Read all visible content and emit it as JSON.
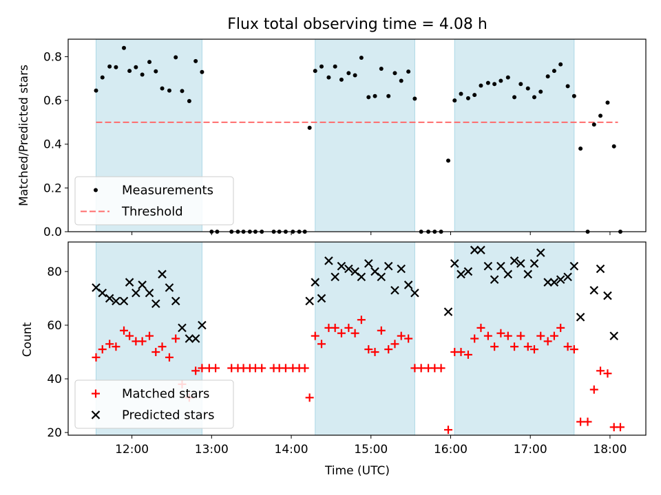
{
  "chart_data": {
    "type": "scatter",
    "title": "Flux total observing time = 4.08 h",
    "xlabel": "Time (UTC)",
    "x_unit": "hours UTC",
    "xlim": [
      11.2,
      18.45
    ],
    "x_ticks": [
      12,
      13,
      14,
      15,
      16,
      17,
      18
    ],
    "x_tick_labels": [
      "12:00",
      "13:00",
      "14:00",
      "15:00",
      "16:00",
      "17:00",
      "18:00"
    ],
    "shaded_intervals": [
      [
        11.55,
        12.88
      ],
      [
        14.3,
        15.55
      ],
      [
        16.05,
        17.55
      ]
    ],
    "shade_color": "#add8e6",
    "panels": [
      {
        "id": "top",
        "ylabel": "Matched/Predicted stars",
        "ylim": [
          0.0,
          0.88
        ],
        "y_ticks": [
          0.0,
          0.2,
          0.4,
          0.6,
          0.8
        ],
        "y_tick_labels": [
          "0.0",
          "0.2",
          "0.4",
          "0.6",
          "0.8"
        ],
        "legend_position": "lower-left",
        "threshold": {
          "name": "Threshold",
          "y": 0.5,
          "x_range": [
            11.55,
            18.1
          ],
          "color": "#ff6b6b"
        },
        "series": [
          {
            "name": "Measurements",
            "marker": "dot",
            "color": "#000000",
            "points": [
              [
                11.55,
                0.645
              ],
              [
                11.63,
                0.705
              ],
              [
                11.72,
                0.755
              ],
              [
                11.8,
                0.752
              ],
              [
                11.9,
                0.84
              ],
              [
                11.97,
                0.735
              ],
              [
                12.05,
                0.752
              ],
              [
                12.13,
                0.718
              ],
              [
                12.22,
                0.776
              ],
              [
                12.3,
                0.733
              ],
              [
                12.38,
                0.655
              ],
              [
                12.47,
                0.645
              ],
              [
                12.55,
                0.797
              ],
              [
                12.63,
                0.643
              ],
              [
                12.72,
                0.597
              ],
              [
                12.8,
                0.78
              ],
              [
                12.88,
                0.73
              ],
              [
                13.0,
                0.0
              ],
              [
                13.07,
                0.0
              ],
              [
                13.25,
                0.0
              ],
              [
                13.33,
                0.0
              ],
              [
                13.4,
                0.0
              ],
              [
                13.48,
                0.0
              ],
              [
                13.55,
                0.0
              ],
              [
                13.63,
                0.0
              ],
              [
                13.78,
                0.0
              ],
              [
                13.85,
                0.0
              ],
              [
                13.93,
                0.0
              ],
              [
                14.02,
                0.0
              ],
              [
                14.1,
                0.0
              ],
              [
                14.17,
                0.0
              ],
              [
                14.23,
                0.475
              ],
              [
                14.3,
                0.735
              ],
              [
                14.38,
                0.755
              ],
              [
                14.47,
                0.705
              ],
              [
                14.55,
                0.755
              ],
              [
                14.63,
                0.695
              ],
              [
                14.72,
                0.725
              ],
              [
                14.8,
                0.715
              ],
              [
                14.88,
                0.795
              ],
              [
                14.97,
                0.615
              ],
              [
                15.05,
                0.62
              ],
              [
                15.13,
                0.745
              ],
              [
                15.22,
                0.62
              ],
              [
                15.3,
                0.725
              ],
              [
                15.38,
                0.69
              ],
              [
                15.47,
                0.732
              ],
              [
                15.55,
                0.608
              ],
              [
                15.63,
                0.0
              ],
              [
                15.72,
                0.0
              ],
              [
                15.8,
                0.0
              ],
              [
                15.88,
                0.0
              ],
              [
                15.97,
                0.325
              ],
              [
                16.05,
                0.6
              ],
              [
                16.13,
                0.63
              ],
              [
                16.22,
                0.61
              ],
              [
                16.3,
                0.625
              ],
              [
                16.38,
                0.668
              ],
              [
                16.47,
                0.68
              ],
              [
                16.55,
                0.675
              ],
              [
                16.63,
                0.69
              ],
              [
                16.72,
                0.705
              ],
              [
                16.8,
                0.615
              ],
              [
                16.88,
                0.675
              ],
              [
                16.97,
                0.655
              ],
              [
                17.05,
                0.615
              ],
              [
                17.13,
                0.64
              ],
              [
                17.22,
                0.71
              ],
              [
                17.3,
                0.735
              ],
              [
                17.38,
                0.765
              ],
              [
                17.47,
                0.665
              ],
              [
                17.55,
                0.62
              ],
              [
                17.63,
                0.38
              ],
              [
                17.72,
                0.0
              ],
              [
                17.8,
                0.49
              ],
              [
                17.88,
                0.53
              ],
              [
                17.97,
                0.59
              ],
              [
                18.05,
                0.39
              ],
              [
                18.13,
                0.0
              ]
            ]
          }
        ]
      },
      {
        "id": "bottom",
        "ylabel": "Count",
        "ylim": [
          19,
          91
        ],
        "y_ticks": [
          20,
          40,
          60,
          80
        ],
        "y_tick_labels": [
          "20",
          "40",
          "60",
          "80"
        ],
        "legend_position": "lower-left",
        "series": [
          {
            "name": "Matched stars",
            "marker": "plus",
            "color": "#ff0000",
            "points": [
              [
                11.55,
                48
              ],
              [
                11.63,
                51
              ],
              [
                11.72,
                53
              ],
              [
                11.8,
                52
              ],
              [
                11.9,
                58
              ],
              [
                11.97,
                56
              ],
              [
                12.05,
                54
              ],
              [
                12.13,
                54
              ],
              [
                12.22,
                56
              ],
              [
                12.3,
                50
              ],
              [
                12.38,
                52
              ],
              [
                12.47,
                48
              ],
              [
                12.55,
                55
              ],
              [
                12.63,
                38
              ],
              [
                12.72,
                33
              ],
              [
                12.8,
                43
              ],
              [
                12.88,
                44
              ],
              [
                12.97,
                44
              ],
              [
                13.05,
                44
              ],
              [
                13.25,
                44
              ],
              [
                13.33,
                44
              ],
              [
                13.4,
                44
              ],
              [
                13.48,
                44
              ],
              [
                13.55,
                44
              ],
              [
                13.63,
                44
              ],
              [
                13.78,
                44
              ],
              [
                13.85,
                44
              ],
              [
                13.93,
                44
              ],
              [
                14.02,
                44
              ],
              [
                14.1,
                44
              ],
              [
                14.17,
                44
              ],
              [
                14.23,
                33
              ],
              [
                14.3,
                56
              ],
              [
                14.38,
                53
              ],
              [
                14.47,
                59
              ],
              [
                14.55,
                59
              ],
              [
                14.63,
                57
              ],
              [
                14.72,
                59
              ],
              [
                14.8,
                57
              ],
              [
                14.88,
                62
              ],
              [
                14.97,
                51
              ],
              [
                15.05,
                50
              ],
              [
                15.13,
                58
              ],
              [
                15.22,
                51
              ],
              [
                15.3,
                53
              ],
              [
                15.38,
                56
              ],
              [
                15.47,
                55
              ],
              [
                15.55,
                44
              ],
              [
                15.63,
                44
              ],
              [
                15.72,
                44
              ],
              [
                15.8,
                44
              ],
              [
                15.88,
                44
              ],
              [
                15.97,
                21
              ],
              [
                16.05,
                50
              ],
              [
                16.13,
                50
              ],
              [
                16.22,
                49
              ],
              [
                16.3,
                55
              ],
              [
                16.38,
                59
              ],
              [
                16.47,
                56
              ],
              [
                16.55,
                52
              ],
              [
                16.63,
                57
              ],
              [
                16.72,
                56
              ],
              [
                16.8,
                52
              ],
              [
                16.88,
                56
              ],
              [
                16.97,
                52
              ],
              [
                17.05,
                51
              ],
              [
                17.13,
                56
              ],
              [
                17.22,
                54
              ],
              [
                17.3,
                56
              ],
              [
                17.38,
                59
              ],
              [
                17.47,
                52
              ],
              [
                17.55,
                51
              ],
              [
                17.63,
                24
              ],
              [
                17.72,
                24
              ],
              [
                17.8,
                36
              ],
              [
                17.88,
                43
              ],
              [
                17.97,
                42
              ],
              [
                18.05,
                22
              ],
              [
                18.13,
                22
              ]
            ]
          },
          {
            "name": "Predicted stars",
            "marker": "x",
            "color": "#000000",
            "points": [
              [
                11.55,
                74
              ],
              [
                11.63,
                72
              ],
              [
                11.72,
                70
              ],
              [
                11.8,
                69
              ],
              [
                11.9,
                69
              ],
              [
                11.97,
                76
              ],
              [
                12.05,
                72
              ],
              [
                12.13,
                75
              ],
              [
                12.22,
                72
              ],
              [
                12.3,
                68
              ],
              [
                12.38,
                79
              ],
              [
                12.47,
                74
              ],
              [
                12.55,
                69
              ],
              [
                12.63,
                59
              ],
              [
                12.72,
                55
              ],
              [
                12.8,
                55
              ],
              [
                12.88,
                60
              ],
              [
                14.23,
                69
              ],
              [
                14.3,
                76
              ],
              [
                14.38,
                70
              ],
              [
                14.47,
                84
              ],
              [
                14.55,
                78
              ],
              [
                14.63,
                82
              ],
              [
                14.72,
                81
              ],
              [
                14.8,
                80
              ],
              [
                14.88,
                78
              ],
              [
                14.97,
                83
              ],
              [
                15.05,
                80
              ],
              [
                15.13,
                78
              ],
              [
                15.22,
                82
              ],
              [
                15.3,
                73
              ],
              [
                15.38,
                81
              ],
              [
                15.47,
                75
              ],
              [
                15.55,
                72
              ],
              [
                15.97,
                65
              ],
              [
                16.05,
                83
              ],
              [
                16.13,
                79
              ],
              [
                16.22,
                80
              ],
              [
                16.3,
                88
              ],
              [
                16.38,
                88
              ],
              [
                16.47,
                82
              ],
              [
                16.55,
                77
              ],
              [
                16.63,
                82
              ],
              [
                16.72,
                79
              ],
              [
                16.8,
                84
              ],
              [
                16.88,
                83
              ],
              [
                16.97,
                79
              ],
              [
                17.05,
                83
              ],
              [
                17.13,
                87
              ],
              [
                17.22,
                76
              ],
              [
                17.3,
                76
              ],
              [
                17.38,
                77
              ],
              [
                17.47,
                78
              ],
              [
                17.55,
                82
              ],
              [
                17.63,
                63
              ],
              [
                17.8,
                73
              ],
              [
                17.88,
                81
              ],
              [
                17.97,
                71
              ],
              [
                18.05,
                56
              ]
            ]
          }
        ]
      }
    ]
  }
}
